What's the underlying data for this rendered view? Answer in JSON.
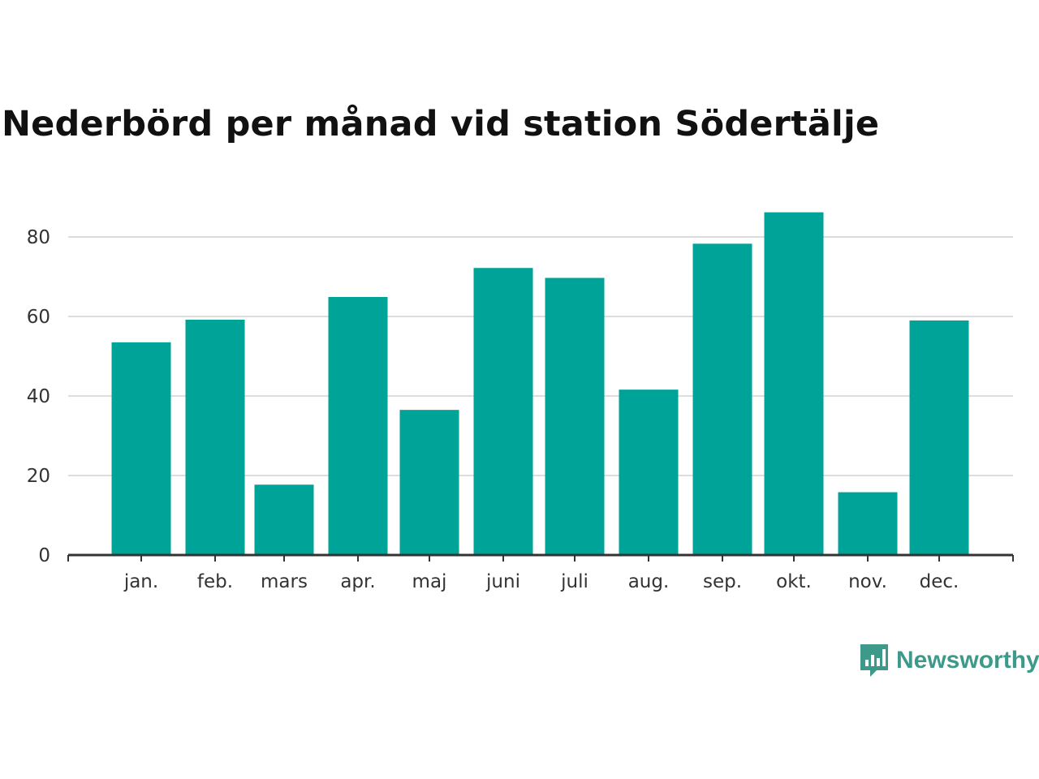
{
  "title": "Nederbörd per månad vid station Södertälje",
  "brand": {
    "name": "Newsworthy",
    "icon": "chart-bubble-icon",
    "color": "#3d9a8b"
  },
  "colors": {
    "bar": "#00a398",
    "grid": "#dddddd",
    "axis": "#333333"
  },
  "chart_data": {
    "type": "bar",
    "title": "Nederbörd per månad vid station Södertälje",
    "xlabel": "",
    "ylabel": "",
    "categories": [
      "jan.",
      "feb.",
      "mars",
      "apr.",
      "maj",
      "juni",
      "juli",
      "aug.",
      "sep.",
      "okt.",
      "nov.",
      "dec."
    ],
    "values": [
      53.5,
      59.2,
      17.7,
      64.9,
      36.5,
      72.2,
      69.7,
      41.6,
      78.3,
      86.2,
      15.8,
      59.0
    ],
    "ylim": [
      0,
      90
    ],
    "yticks": [
      0,
      20,
      40,
      60,
      80
    ],
    "grid": true,
    "legend": "none"
  }
}
